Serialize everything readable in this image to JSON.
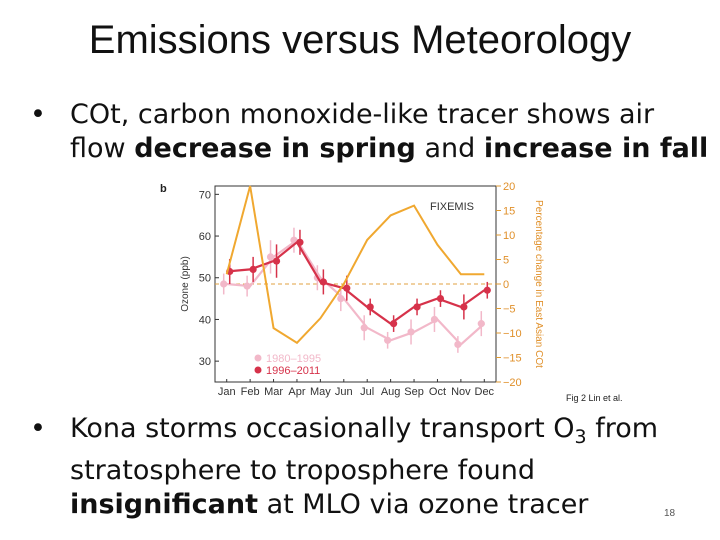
{
  "slide": {
    "title": "Emissions versus Meteorology",
    "bullet_symbol": "•",
    "bullet1": {
      "part1": "COt, carbon monoxide-like tracer shows air flow ",
      "bold1": "decrease in spring",
      "part2": " and ",
      "bold2": "increase in fall"
    },
    "bullet2": {
      "part1": "Kona storms occasionally transport O",
      "subscript": "3",
      "part2": " from stratosphere to troposphere found ",
      "bold": "insignificant",
      "part3": " at MLO via ozone tracer"
    },
    "caption": "Fig 2 Lin et al.",
    "page_number": "18"
  },
  "chart_data": {
    "type": "line",
    "panel_label": "b",
    "annotation": "FIXEMIS",
    "ylabel": "Ozone (ppb)",
    "ylabel_right": "Percentage change in East Asian COt",
    "ylim": [
      25,
      72
    ],
    "ylim_right": [
      -20,
      20
    ],
    "yticks": [
      "30",
      "40",
      "50",
      "60",
      "70"
    ],
    "yticks_right": [
      "-20",
      "-15",
      "-10",
      "-5",
      "0",
      "5",
      "10",
      "15",
      "20"
    ],
    "categories": [
      "Jan",
      "Feb",
      "Mar",
      "Apr",
      "May",
      "Jun",
      "Jul",
      "Aug",
      "Sep",
      "Oct",
      "Nov",
      "Dec"
    ],
    "series": [
      {
        "name": "1980–1995",
        "color": "#f2b8c9",
        "values": [
          48.5,
          48,
          55,
          59,
          50,
          45,
          38,
          35,
          37,
          40,
          34,
          39
        ],
        "err": [
          2.5,
          2.5,
          4,
          3,
          3,
          3,
          3,
          2,
          3,
          3,
          2,
          3
        ]
      },
      {
        "name": "1996–2011",
        "color": "#d6324a",
        "values": [
          51.5,
          52,
          54,
          58.5,
          49,
          47.5,
          43,
          39,
          43,
          45,
          43,
          47
        ],
        "err": [
          3,
          3,
          4,
          3,
          3,
          3,
          2,
          2,
          2,
          2,
          3,
          2
        ]
      },
      {
        "name": "Percentage change in East Asian COt",
        "color": "#f0a830",
        "axis": "right",
        "values": [
          2,
          20,
          -9,
          -12,
          -7,
          0,
          9,
          14,
          16,
          8,
          2,
          2
        ]
      }
    ],
    "reference_line_right": 0,
    "legend": [
      "1980–1995",
      "1996–2011"
    ],
    "legend_position": "bottom-left"
  }
}
